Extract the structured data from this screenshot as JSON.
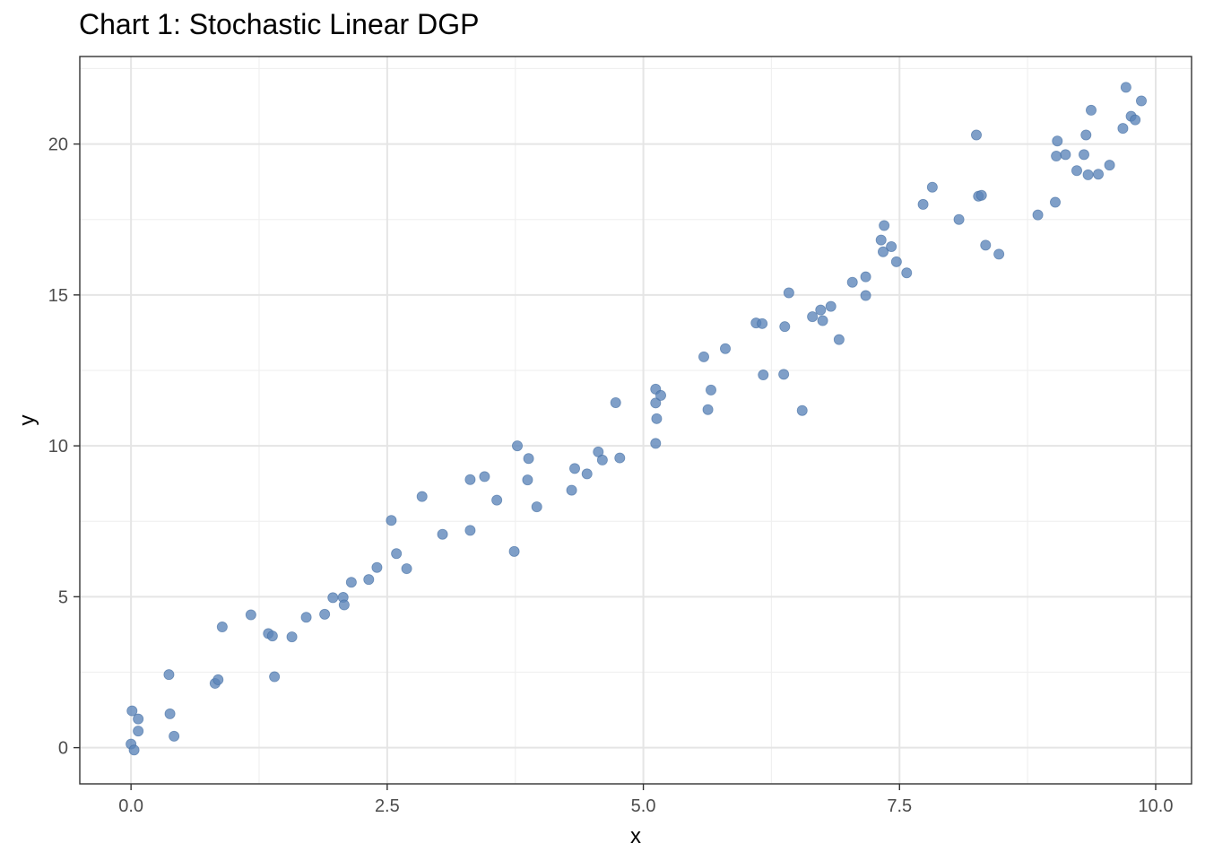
{
  "chart_data": {
    "type": "scatter",
    "title": "Chart 1: Stochastic Linear DGP",
    "xlabel": "x",
    "ylabel": "y",
    "xlim": [
      -0.5,
      10.35
    ],
    "ylim": [
      -1.2,
      22.9
    ],
    "xticks": [
      0,
      2.5,
      5,
      7.5,
      10
    ],
    "xtick_labels": [
      "0.0",
      "2.5",
      "5.0",
      "7.5",
      "10.0"
    ],
    "yticks": [
      0,
      5,
      10,
      15,
      20
    ],
    "ytick_labels": [
      "0",
      "5",
      "10",
      "15",
      "20"
    ],
    "grid": true,
    "point_color": "#5b84b8",
    "points": [
      [
        0.0,
        0.12
      ],
      [
        0.03,
        -0.08
      ],
      [
        0.01,
        1.22
      ],
      [
        0.07,
        0.95
      ],
      [
        0.07,
        0.55
      ],
      [
        0.37,
        2.42
      ],
      [
        0.38,
        1.12
      ],
      [
        0.42,
        0.38
      ],
      [
        0.82,
        2.13
      ],
      [
        0.85,
        2.25
      ],
      [
        0.89,
        4.0
      ],
      [
        1.17,
        4.4
      ],
      [
        1.34,
        3.78
      ],
      [
        1.38,
        3.7
      ],
      [
        1.4,
        2.35
      ],
      [
        1.57,
        3.67
      ],
      [
        1.71,
        4.32
      ],
      [
        1.89,
        4.42
      ],
      [
        1.97,
        4.97
      ],
      [
        2.07,
        4.98
      ],
      [
        2.08,
        4.73
      ],
      [
        2.15,
        5.48
      ],
      [
        2.32,
        5.57
      ],
      [
        2.4,
        5.97
      ],
      [
        2.54,
        7.53
      ],
      [
        2.59,
        6.43
      ],
      [
        2.69,
        5.93
      ],
      [
        2.84,
        8.32
      ],
      [
        3.04,
        7.07
      ],
      [
        3.31,
        8.88
      ],
      [
        3.31,
        7.2
      ],
      [
        3.45,
        8.98
      ],
      [
        3.57,
        8.2
      ],
      [
        3.74,
        6.5
      ],
      [
        3.77,
        10.0
      ],
      [
        3.87,
        8.87
      ],
      [
        3.88,
        9.58
      ],
      [
        3.96,
        7.98
      ],
      [
        4.3,
        8.53
      ],
      [
        4.33,
        9.25
      ],
      [
        4.45,
        9.07
      ],
      [
        4.56,
        9.8
      ],
      [
        4.6,
        9.53
      ],
      [
        4.73,
        11.43
      ],
      [
        4.77,
        9.6
      ],
      [
        5.12,
        11.88
      ],
      [
        5.12,
        11.42
      ],
      [
        5.13,
        10.9
      ],
      [
        5.12,
        10.08
      ],
      [
        5.17,
        11.67
      ],
      [
        5.59,
        12.95
      ],
      [
        5.63,
        11.2
      ],
      [
        5.66,
        11.85
      ],
      [
        5.8,
        13.22
      ],
      [
        6.1,
        14.07
      ],
      [
        6.16,
        14.05
      ],
      [
        6.17,
        12.35
      ],
      [
        6.37,
        12.37
      ],
      [
        6.38,
        13.95
      ],
      [
        6.42,
        15.07
      ],
      [
        6.55,
        11.17
      ],
      [
        6.65,
        14.28
      ],
      [
        6.73,
        14.5
      ],
      [
        6.75,
        14.15
      ],
      [
        6.83,
        14.62
      ],
      [
        6.91,
        13.52
      ],
      [
        7.04,
        15.42
      ],
      [
        7.17,
        15.6
      ],
      [
        7.17,
        14.98
      ],
      [
        7.32,
        16.82
      ],
      [
        7.34,
        16.43
      ],
      [
        7.35,
        17.3
      ],
      [
        7.42,
        16.6
      ],
      [
        7.47,
        16.1
      ],
      [
        7.57,
        15.73
      ],
      [
        7.73,
        18.0
      ],
      [
        7.82,
        18.57
      ],
      [
        8.08,
        17.5
      ],
      [
        8.25,
        20.3
      ],
      [
        8.27,
        18.27
      ],
      [
        8.3,
        18.3
      ],
      [
        8.34,
        16.65
      ],
      [
        8.47,
        16.35
      ],
      [
        8.85,
        17.65
      ],
      [
        9.02,
        18.07
      ],
      [
        9.03,
        19.6
      ],
      [
        9.04,
        20.1
      ],
      [
        9.12,
        19.65
      ],
      [
        9.23,
        19.12
      ],
      [
        9.3,
        19.65
      ],
      [
        9.32,
        20.3
      ],
      [
        9.34,
        18.98
      ],
      [
        9.37,
        21.12
      ],
      [
        9.44,
        19.0
      ],
      [
        9.55,
        19.3
      ],
      [
        9.68,
        20.52
      ],
      [
        9.71,
        21.88
      ],
      [
        9.76,
        20.92
      ],
      [
        9.8,
        20.8
      ],
      [
        9.86,
        21.43
      ]
    ]
  }
}
